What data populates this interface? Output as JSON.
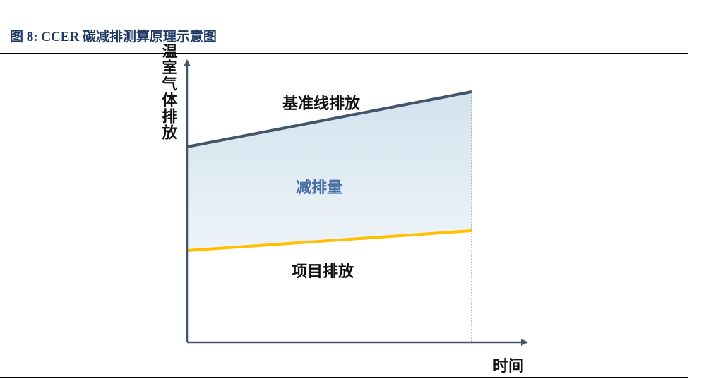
{
  "header": {
    "title": "图 8:  CCER 碳减排测算原理示意图"
  },
  "diagram": {
    "y_axis_label": "温室气体排放",
    "x_axis_label": "时间",
    "baseline_label": "基准线排放",
    "reduction_label": "减排量",
    "project_label": "项目排放"
  }
}
